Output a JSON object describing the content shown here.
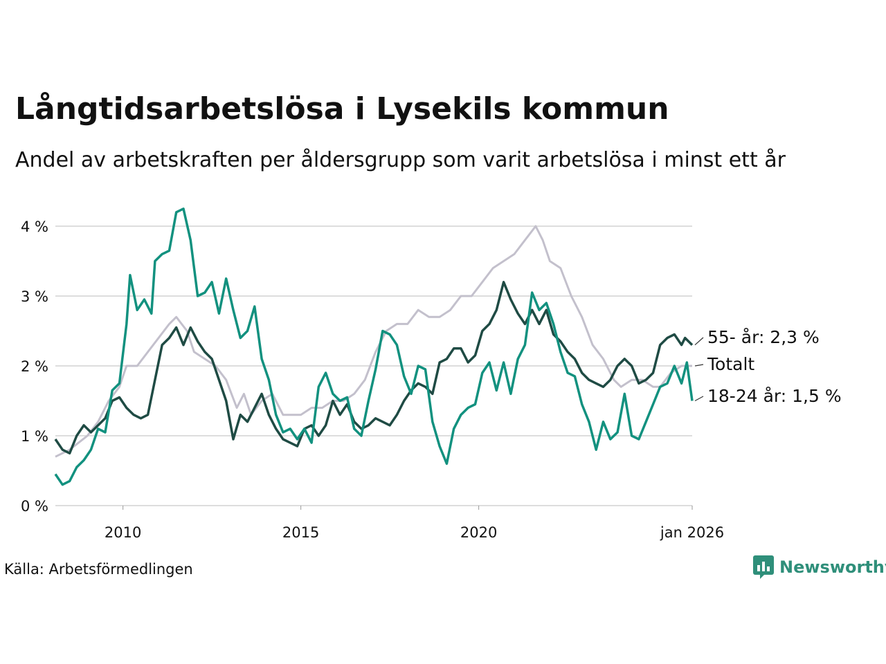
{
  "title": "Långtidsarbetslösa i Lysekils kommun",
  "subtitle": "Andel av arbetskraften per åldersgrupp som varit arbetslösa i minst ett år",
  "source": "Källa: Arbetsförmedlingen",
  "brand": {
    "name": "Newsworthy",
    "icon": "bar-chart-logo-icon"
  },
  "colors": {
    "total": "#c3c0cc",
    "age55": "#1f4b44",
    "age18_24": "#12917f",
    "grid": "#dddddd",
    "brand": "#2f8f7a"
  },
  "chart_data": {
    "type": "line",
    "title": "Långtidsarbetslösa i Lysekils kommun",
    "xlabel": "",
    "ylabel": "",
    "xlim": [
      2008.1,
      2026.0
    ],
    "ylim": [
      0,
      4
    ],
    "grid": true,
    "y_ticks": [
      {
        "value": 0,
        "label": "0 %"
      },
      {
        "value": 1,
        "label": "1 %"
      },
      {
        "value": 2,
        "label": "2 %"
      },
      {
        "value": 3,
        "label": "3 %"
      },
      {
        "value": 4,
        "label": "4 %"
      }
    ],
    "x_ticks": [
      {
        "value": 2010,
        "label": "2010"
      },
      {
        "value": 2015,
        "label": "2015"
      },
      {
        "value": 2020,
        "label": "2020"
      },
      {
        "value": 2026,
        "label": "jan 2026"
      }
    ],
    "series": [
      {
        "key": "total",
        "name": "Totalt",
        "end_label": "Totalt",
        "points": [
          [
            2008.1,
            0.7
          ],
          [
            2008.5,
            0.8
          ],
          [
            2009.0,
            1.0
          ],
          [
            2009.3,
            1.2
          ],
          [
            2009.6,
            1.5
          ],
          [
            2009.9,
            1.7
          ],
          [
            2010.1,
            2.0
          ],
          [
            2010.4,
            2.0
          ],
          [
            2010.7,
            2.2
          ],
          [
            2011.0,
            2.4
          ],
          [
            2011.3,
            2.6
          ],
          [
            2011.5,
            2.7
          ],
          [
            2011.8,
            2.5
          ],
          [
            2012.0,
            2.2
          ],
          [
            2012.3,
            2.1
          ],
          [
            2012.6,
            2.0
          ],
          [
            2012.9,
            1.8
          ],
          [
            2013.2,
            1.4
          ],
          [
            2013.4,
            1.6
          ],
          [
            2013.6,
            1.3
          ],
          [
            2013.9,
            1.5
          ],
          [
            2014.2,
            1.6
          ],
          [
            2014.5,
            1.3
          ],
          [
            2014.8,
            1.3
          ],
          [
            2015.0,
            1.3
          ],
          [
            2015.3,
            1.4
          ],
          [
            2015.6,
            1.4
          ],
          [
            2015.9,
            1.5
          ],
          [
            2016.2,
            1.5
          ],
          [
            2016.5,
            1.6
          ],
          [
            2016.8,
            1.8
          ],
          [
            2017.1,
            2.2
          ],
          [
            2017.4,
            2.5
          ],
          [
            2017.7,
            2.6
          ],
          [
            2018.0,
            2.6
          ],
          [
            2018.3,
            2.8
          ],
          [
            2018.6,
            2.7
          ],
          [
            2018.9,
            2.7
          ],
          [
            2019.2,
            2.8
          ],
          [
            2019.5,
            3.0
          ],
          [
            2019.8,
            3.0
          ],
          [
            2020.1,
            3.2
          ],
          [
            2020.4,
            3.4
          ],
          [
            2020.7,
            3.5
          ],
          [
            2021.0,
            3.6
          ],
          [
            2021.3,
            3.8
          ],
          [
            2021.6,
            4.0
          ],
          [
            2021.8,
            3.8
          ],
          [
            2022.0,
            3.5
          ],
          [
            2022.3,
            3.4
          ],
          [
            2022.6,
            3.0
          ],
          [
            2022.9,
            2.7
          ],
          [
            2023.2,
            2.3
          ],
          [
            2023.5,
            2.1
          ],
          [
            2023.8,
            1.8
          ],
          [
            2024.0,
            1.7
          ],
          [
            2024.3,
            1.8
          ],
          [
            2024.6,
            1.8
          ],
          [
            2024.9,
            1.7
          ],
          [
            2025.1,
            1.7
          ],
          [
            2025.4,
            1.9
          ],
          [
            2025.7,
            2.0
          ],
          [
            2026.0,
            2.0
          ]
        ]
      },
      {
        "key": "age55",
        "name": "55- år",
        "end_label": "55- år: 2,3 %",
        "points": [
          [
            2008.1,
            0.95
          ],
          [
            2008.3,
            0.8
          ],
          [
            2008.5,
            0.75
          ],
          [
            2008.7,
            1.0
          ],
          [
            2008.9,
            1.15
          ],
          [
            2009.1,
            1.05
          ],
          [
            2009.3,
            1.15
          ],
          [
            2009.5,
            1.25
          ],
          [
            2009.7,
            1.5
          ],
          [
            2009.9,
            1.55
          ],
          [
            2010.1,
            1.4
          ],
          [
            2010.3,
            1.3
          ],
          [
            2010.5,
            1.25
          ],
          [
            2010.7,
            1.3
          ],
          [
            2010.9,
            1.8
          ],
          [
            2011.1,
            2.3
          ],
          [
            2011.3,
            2.4
          ],
          [
            2011.5,
            2.55
          ],
          [
            2011.7,
            2.3
          ],
          [
            2011.9,
            2.55
          ],
          [
            2012.1,
            2.35
          ],
          [
            2012.3,
            2.2
          ],
          [
            2012.5,
            2.1
          ],
          [
            2012.7,
            1.8
          ],
          [
            2012.9,
            1.5
          ],
          [
            2013.1,
            0.95
          ],
          [
            2013.3,
            1.3
          ],
          [
            2013.5,
            1.2
          ],
          [
            2013.7,
            1.4
          ],
          [
            2013.9,
            1.6
          ],
          [
            2014.1,
            1.3
          ],
          [
            2014.3,
            1.1
          ],
          [
            2014.5,
            0.95
          ],
          [
            2014.7,
            0.9
          ],
          [
            2014.9,
            0.85
          ],
          [
            2015.1,
            1.1
          ],
          [
            2015.3,
            1.15
          ],
          [
            2015.5,
            1.0
          ],
          [
            2015.7,
            1.15
          ],
          [
            2015.9,
            1.5
          ],
          [
            2016.1,
            1.3
          ],
          [
            2016.3,
            1.45
          ],
          [
            2016.5,
            1.2
          ],
          [
            2016.7,
            1.1
          ],
          [
            2016.9,
            1.15
          ],
          [
            2017.1,
            1.25
          ],
          [
            2017.3,
            1.2
          ],
          [
            2017.5,
            1.15
          ],
          [
            2017.7,
            1.3
          ],
          [
            2017.9,
            1.5
          ],
          [
            2018.1,
            1.65
          ],
          [
            2018.3,
            1.75
          ],
          [
            2018.5,
            1.7
          ],
          [
            2018.7,
            1.6
          ],
          [
            2018.9,
            2.05
          ],
          [
            2019.1,
            2.1
          ],
          [
            2019.3,
            2.25
          ],
          [
            2019.5,
            2.25
          ],
          [
            2019.7,
            2.05
          ],
          [
            2019.9,
            2.15
          ],
          [
            2020.1,
            2.5
          ],
          [
            2020.3,
            2.6
          ],
          [
            2020.5,
            2.8
          ],
          [
            2020.7,
            3.2
          ],
          [
            2020.9,
            2.95
          ],
          [
            2021.1,
            2.75
          ],
          [
            2021.3,
            2.6
          ],
          [
            2021.5,
            2.8
          ],
          [
            2021.7,
            2.6
          ],
          [
            2021.9,
            2.8
          ],
          [
            2022.1,
            2.45
          ],
          [
            2022.3,
            2.35
          ],
          [
            2022.5,
            2.2
          ],
          [
            2022.7,
            2.1
          ],
          [
            2022.9,
            1.9
          ],
          [
            2023.1,
            1.8
          ],
          [
            2023.3,
            1.75
          ],
          [
            2023.5,
            1.7
          ],
          [
            2023.7,
            1.8
          ],
          [
            2023.9,
            2.0
          ],
          [
            2024.1,
            2.1
          ],
          [
            2024.3,
            2.0
          ],
          [
            2024.5,
            1.75
          ],
          [
            2024.7,
            1.8
          ],
          [
            2024.9,
            1.9
          ],
          [
            2025.1,
            2.3
          ],
          [
            2025.3,
            2.4
          ],
          [
            2025.5,
            2.45
          ],
          [
            2025.7,
            2.3
          ],
          [
            2025.8,
            2.4
          ],
          [
            2026.0,
            2.3
          ]
        ]
      },
      {
        "key": "age18_24",
        "name": "18-24 år",
        "end_label": "18-24 år: 1,5 %",
        "points": [
          [
            2008.1,
            0.45
          ],
          [
            2008.3,
            0.3
          ],
          [
            2008.5,
            0.35
          ],
          [
            2008.7,
            0.55
          ],
          [
            2008.9,
            0.65
          ],
          [
            2009.1,
            0.8
          ],
          [
            2009.3,
            1.1
          ],
          [
            2009.5,
            1.05
          ],
          [
            2009.7,
            1.65
          ],
          [
            2009.9,
            1.75
          ],
          [
            2010.1,
            2.6
          ],
          [
            2010.2,
            3.3
          ],
          [
            2010.4,
            2.8
          ],
          [
            2010.6,
            2.95
          ],
          [
            2010.8,
            2.75
          ],
          [
            2010.9,
            3.5
          ],
          [
            2011.1,
            3.6
          ],
          [
            2011.3,
            3.65
          ],
          [
            2011.5,
            4.2
          ],
          [
            2011.7,
            4.25
          ],
          [
            2011.9,
            3.8
          ],
          [
            2012.1,
            3.0
          ],
          [
            2012.3,
            3.05
          ],
          [
            2012.5,
            3.2
          ],
          [
            2012.7,
            2.75
          ],
          [
            2012.9,
            3.25
          ],
          [
            2013.1,
            2.8
          ],
          [
            2013.3,
            2.4
          ],
          [
            2013.5,
            2.5
          ],
          [
            2013.7,
            2.85
          ],
          [
            2013.9,
            2.1
          ],
          [
            2014.1,
            1.8
          ],
          [
            2014.3,
            1.3
          ],
          [
            2014.5,
            1.05
          ],
          [
            2014.7,
            1.1
          ],
          [
            2014.9,
            0.95
          ],
          [
            2015.1,
            1.1
          ],
          [
            2015.3,
            0.9
          ],
          [
            2015.5,
            1.7
          ],
          [
            2015.7,
            1.9
          ],
          [
            2015.9,
            1.6
          ],
          [
            2016.1,
            1.5
          ],
          [
            2016.3,
            1.55
          ],
          [
            2016.5,
            1.1
          ],
          [
            2016.7,
            1.0
          ],
          [
            2016.9,
            1.5
          ],
          [
            2017.1,
            1.95
          ],
          [
            2017.3,
            2.5
          ],
          [
            2017.5,
            2.45
          ],
          [
            2017.7,
            2.3
          ],
          [
            2017.9,
            1.85
          ],
          [
            2018.1,
            1.6
          ],
          [
            2018.3,
            2.0
          ],
          [
            2018.5,
            1.95
          ],
          [
            2018.7,
            1.2
          ],
          [
            2018.9,
            0.85
          ],
          [
            2019.1,
            0.6
          ],
          [
            2019.3,
            1.1
          ],
          [
            2019.5,
            1.3
          ],
          [
            2019.7,
            1.4
          ],
          [
            2019.9,
            1.45
          ],
          [
            2020.1,
            1.9
          ],
          [
            2020.3,
            2.05
          ],
          [
            2020.5,
            1.65
          ],
          [
            2020.7,
            2.05
          ],
          [
            2020.9,
            1.6
          ],
          [
            2021.1,
            2.1
          ],
          [
            2021.3,
            2.3
          ],
          [
            2021.5,
            3.05
          ],
          [
            2021.7,
            2.8
          ],
          [
            2021.9,
            2.9
          ],
          [
            2022.1,
            2.6
          ],
          [
            2022.3,
            2.2
          ],
          [
            2022.5,
            1.9
          ],
          [
            2022.7,
            1.85
          ],
          [
            2022.9,
            1.45
          ],
          [
            2023.1,
            1.2
          ],
          [
            2023.3,
            0.8
          ],
          [
            2023.5,
            1.2
          ],
          [
            2023.7,
            0.95
          ],
          [
            2023.9,
            1.05
          ],
          [
            2024.1,
            1.6
          ],
          [
            2024.3,
            1.0
          ],
          [
            2024.5,
            0.95
          ],
          [
            2024.7,
            1.2
          ],
          [
            2024.9,
            1.45
          ],
          [
            2025.1,
            1.7
          ],
          [
            2025.3,
            1.75
          ],
          [
            2025.5,
            2.0
          ],
          [
            2025.7,
            1.75
          ],
          [
            2025.85,
            2.05
          ],
          [
            2026.0,
            1.5
          ]
        ]
      }
    ]
  }
}
